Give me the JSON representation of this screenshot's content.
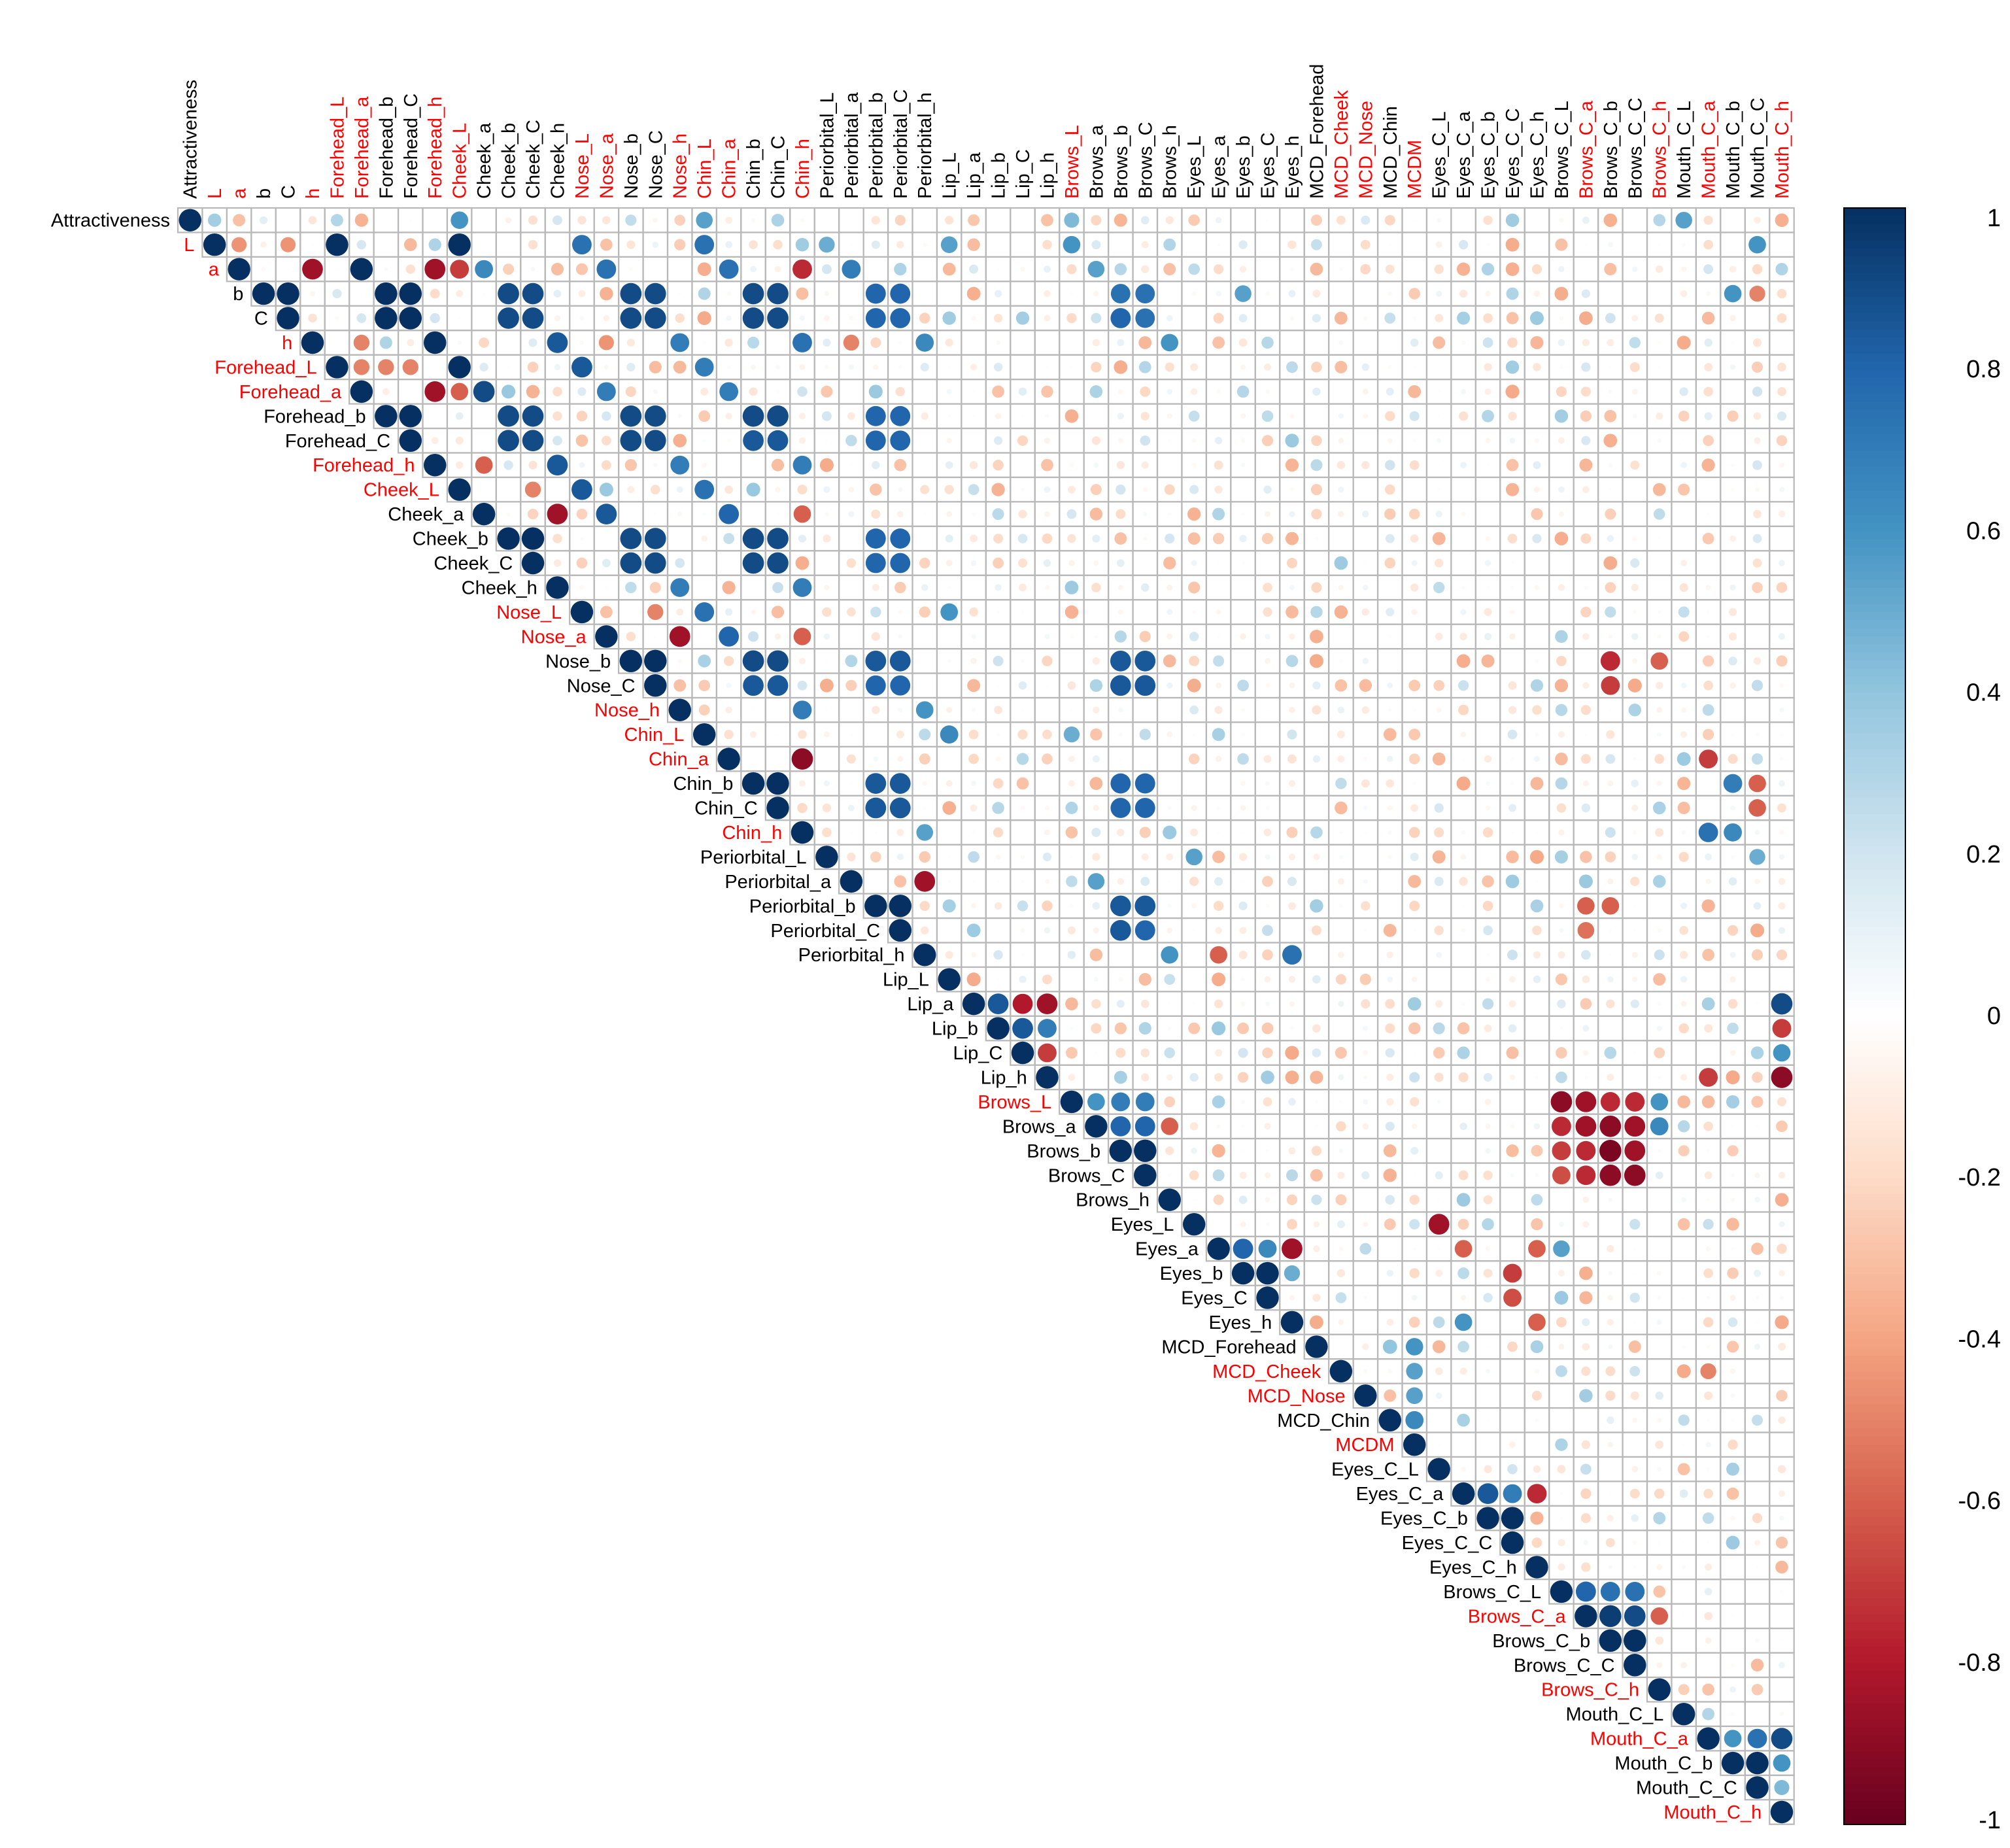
{
  "chart_data": {
    "type": "heatmap",
    "style": "upper-triangle correlation matrix, circles sized and coloured by coefficient",
    "title": "",
    "variables": [
      "Attractiveness",
      "L",
      "a",
      "b",
      "C",
      "h",
      "Forehead_L",
      "Forehead_a",
      "Forehead_b",
      "Forehead_C",
      "Forehead_h",
      "Cheek_L",
      "Cheek_a",
      "Cheek_b",
      "Cheek_C",
      "Cheek_h",
      "Nose_L",
      "Nose_a",
      "Nose_b",
      "Nose_C",
      "Nose_h",
      "Chin_L",
      "Chin_a",
      "Chin_b",
      "Chin_C",
      "Chin_h",
      "Periorbital_L",
      "Periorbital_a",
      "Periorbital_b",
      "Periorbital_C",
      "Periorbital_h",
      "Lip_L",
      "Lip_a",
      "Lip_b",
      "Lip_C",
      "Lip_h",
      "Brows_L",
      "Brows_a",
      "Brows_b",
      "Brows_C",
      "Brows_h",
      "Eyes_L",
      "Eyes_a",
      "Eyes_b",
      "Eyes_C",
      "Eyes_h",
      "MCD_Forehead",
      "MCD_Cheek",
      "MCD_Nose",
      "MCD_Chin",
      "MCDM",
      "Eyes_C_L",
      "Eyes_C_a",
      "Eyes_C_b",
      "Eyes_C_C",
      "Eyes_C_h",
      "Brows_C_L",
      "Brows_C_a",
      "Brows_C_b",
      "Brows_C_C",
      "Brows_C_h",
      "Mouth_C_L",
      "Mouth_C_a",
      "Mouth_C_b",
      "Mouth_C_C",
      "Mouth_C_h"
    ],
    "highlighted_variables": [
      "L",
      "a",
      "h",
      "Forehead_L",
      "Forehead_a",
      "Forehead_h",
      "Cheek_L",
      "Nose_L",
      "Nose_a",
      "Nose_h",
      "Chin_L",
      "Chin_a",
      "Chin_h",
      "Brows_L",
      "MCD_Cheek",
      "MCD_Nose",
      "MCDM",
      "Brows_C_a",
      "Brows_C_h",
      "Mouth_C_a",
      "Mouth_C_h"
    ],
    "colorbar": {
      "ticks": [
        "1",
        "0.8",
        "0.6",
        "0.4",
        "0.2",
        "0",
        "-0.2",
        "-0.4",
        "-0.6",
        "-0.8",
        "-1"
      ],
      "range": [
        -1,
        1
      ]
    },
    "correlations": [
      [
        0,
        1,
        0.35
      ],
      [
        0,
        2,
        -0.3
      ],
      [
        0,
        6,
        0.3
      ],
      [
        0,
        7,
        -0.35
      ],
      [
        0,
        11,
        0.6
      ],
      [
        0,
        21,
        0.55
      ],
      [
        0,
        36,
        0.45
      ],
      [
        0,
        61,
        0.55
      ],
      [
        1,
        6,
        1.0
      ],
      [
        1,
        11,
        1.0
      ],
      [
        1,
        16,
        0.75
      ],
      [
        1,
        21,
        0.75
      ],
      [
        1,
        2,
        -0.45
      ],
      [
        1,
        4,
        -0.45
      ],
      [
        1,
        36,
        0.6
      ],
      [
        1,
        26,
        0.5
      ],
      [
        1,
        31,
        0.55
      ],
      [
        1,
        64,
        0.6
      ],
      [
        2,
        7,
        1.0
      ],
      [
        2,
        5,
        -0.85
      ],
      [
        2,
        10,
        -0.85
      ],
      [
        2,
        11,
        -0.7
      ],
      [
        2,
        12,
        0.65
      ],
      [
        2,
        17,
        0.75
      ],
      [
        2,
        22,
        0.75
      ],
      [
        2,
        25,
        -0.75
      ],
      [
        2,
        27,
        0.7
      ],
      [
        2,
        37,
        0.55
      ],
      [
        3,
        4,
        1.0
      ],
      [
        3,
        8,
        1.0
      ],
      [
        3,
        9,
        1.0
      ],
      [
        3,
        13,
        0.9
      ],
      [
        3,
        14,
        0.9
      ],
      [
        3,
        18,
        0.9
      ],
      [
        3,
        19,
        0.9
      ],
      [
        3,
        23,
        0.9
      ],
      [
        3,
        24,
        0.9
      ],
      [
        3,
        28,
        0.8
      ],
      [
        3,
        29,
        0.8
      ],
      [
        3,
        38,
        0.75
      ],
      [
        3,
        39,
        0.75
      ],
      [
        3,
        43,
        0.55
      ],
      [
        3,
        63,
        0.6
      ],
      [
        3,
        64,
        -0.5
      ],
      [
        4,
        8,
        1.0
      ],
      [
        4,
        9,
        1.0
      ],
      [
        4,
        13,
        0.9
      ],
      [
        4,
        14,
        0.9
      ],
      [
        4,
        18,
        0.9
      ],
      [
        4,
        19,
        0.9
      ],
      [
        4,
        23,
        0.9
      ],
      [
        4,
        24,
        0.9
      ],
      [
        4,
        28,
        0.8
      ],
      [
        4,
        29,
        0.8
      ],
      [
        4,
        38,
        0.8
      ],
      [
        4,
        39,
        0.75
      ],
      [
        5,
        10,
        1.0
      ],
      [
        5,
        15,
        0.85
      ],
      [
        5,
        20,
        0.7
      ],
      [
        5,
        25,
        0.75
      ],
      [
        5,
        30,
        0.65
      ],
      [
        5,
        40,
        0.6
      ],
      [
        5,
        7,
        -0.5
      ],
      [
        5,
        17,
        -0.45
      ],
      [
        5,
        27,
        -0.5
      ],
      [
        6,
        11,
        1.0
      ],
      [
        6,
        16,
        0.85
      ],
      [
        6,
        21,
        0.7
      ],
      [
        6,
        7,
        -0.5
      ],
      [
        6,
        8,
        -0.5
      ],
      [
        6,
        9,
        -0.5
      ],
      [
        7,
        12,
        0.9
      ],
      [
        7,
        10,
        -0.85
      ],
      [
        7,
        11,
        -0.6
      ],
      [
        7,
        17,
        0.7
      ],
      [
        7,
        22,
        0.7
      ],
      [
        8,
        9,
        1.0
      ],
      [
        8,
        13,
        0.9
      ],
      [
        8,
        14,
        0.9
      ],
      [
        8,
        18,
        0.9
      ],
      [
        8,
        19,
        0.9
      ],
      [
        8,
        23,
        0.9
      ],
      [
        8,
        24,
        0.9
      ],
      [
        8,
        28,
        0.8
      ],
      [
        8,
        29,
        0.8
      ],
      [
        9,
        13,
        0.9
      ],
      [
        9,
        14,
        0.9
      ],
      [
        9,
        18,
        0.9
      ],
      [
        9,
        19,
        0.9
      ],
      [
        9,
        23,
        0.85
      ],
      [
        9,
        24,
        0.85
      ],
      [
        9,
        28,
        0.8
      ],
      [
        9,
        29,
        0.8
      ],
      [
        10,
        15,
        0.85
      ],
      [
        10,
        20,
        0.7
      ],
      [
        10,
        25,
        0.7
      ],
      [
        10,
        12,
        -0.6
      ],
      [
        11,
        16,
        0.85
      ],
      [
        11,
        21,
        0.75
      ],
      [
        11,
        14,
        -0.5
      ],
      [
        12,
        17,
        0.85
      ],
      [
        12,
        22,
        0.8
      ],
      [
        12,
        15,
        -0.85
      ],
      [
        12,
        25,
        -0.6
      ],
      [
        13,
        14,
        1.0
      ],
      [
        13,
        18,
        0.9
      ],
      [
        13,
        19,
        0.9
      ],
      [
        13,
        23,
        0.9
      ],
      [
        13,
        24,
        0.9
      ],
      [
        13,
        28,
        0.8
      ],
      [
        13,
        29,
        0.8
      ],
      [
        14,
        18,
        0.9
      ],
      [
        14,
        19,
        0.9
      ],
      [
        14,
        23,
        0.9
      ],
      [
        14,
        24,
        0.9
      ],
      [
        14,
        28,
        0.8
      ],
      [
        14,
        29,
        0.8
      ],
      [
        15,
        20,
        0.7
      ],
      [
        15,
        25,
        0.7
      ],
      [
        16,
        21,
        0.75
      ],
      [
        16,
        31,
        0.6
      ],
      [
        16,
        19,
        -0.5
      ],
      [
        17,
        22,
        0.8
      ],
      [
        17,
        20,
        -0.85
      ],
      [
        17,
        25,
        -0.6
      ],
      [
        18,
        19,
        1.0
      ],
      [
        18,
        23,
        0.9
      ],
      [
        18,
        24,
        0.9
      ],
      [
        18,
        28,
        0.85
      ],
      [
        18,
        29,
        0.85
      ],
      [
        18,
        38,
        0.85
      ],
      [
        18,
        39,
        0.85
      ],
      [
        18,
        58,
        -0.75
      ],
      [
        18,
        60,
        -0.6
      ],
      [
        19,
        23,
        0.85
      ],
      [
        19,
        24,
        0.85
      ],
      [
        19,
        28,
        0.8
      ],
      [
        19,
        29,
        0.8
      ],
      [
        19,
        38,
        0.85
      ],
      [
        19,
        39,
        0.85
      ],
      [
        19,
        58,
        -0.7
      ],
      [
        20,
        25,
        0.7
      ],
      [
        20,
        30,
        0.6
      ],
      [
        21,
        31,
        0.65
      ],
      [
        21,
        36,
        0.5
      ],
      [
        22,
        25,
        -0.9
      ],
      [
        22,
        62,
        -0.7
      ],
      [
        23,
        24,
        1.0
      ],
      [
        23,
        28,
        0.85
      ],
      [
        23,
        29,
        0.85
      ],
      [
        23,
        38,
        0.8
      ],
      [
        23,
        39,
        0.8
      ],
      [
        23,
        63,
        0.7
      ],
      [
        23,
        64,
        -0.6
      ],
      [
        24,
        28,
        0.85
      ],
      [
        24,
        29,
        0.85
      ],
      [
        24,
        38,
        0.8
      ],
      [
        24,
        39,
        0.8
      ],
      [
        24,
        64,
        -0.6
      ],
      [
        25,
        30,
        0.55
      ],
      [
        25,
        62,
        0.75
      ],
      [
        25,
        63,
        0.65
      ],
      [
        26,
        64,
        0.5
      ],
      [
        26,
        41,
        0.55
      ],
      [
        27,
        30,
        -0.85
      ],
      [
        27,
        37,
        0.55
      ],
      [
        28,
        29,
        1.0
      ],
      [
        28,
        38,
        0.85
      ],
      [
        28,
        39,
        0.85
      ],
      [
        28,
        57,
        -0.6
      ],
      [
        28,
        58,
        -0.6
      ],
      [
        29,
        38,
        0.85
      ],
      [
        29,
        39,
        0.8
      ],
      [
        29,
        57,
        -0.55
      ],
      [
        30,
        40,
        0.6
      ],
      [
        30,
        42,
        -0.6
      ],
      [
        30,
        45,
        0.75
      ],
      [
        32,
        33,
        0.85
      ],
      [
        32,
        34,
        -0.8
      ],
      [
        32,
        35,
        -0.85
      ],
      [
        32,
        65,
        0.9
      ],
      [
        33,
        34,
        0.85
      ],
      [
        33,
        35,
        0.7
      ],
      [
        33,
        65,
        -0.7
      ],
      [
        34,
        35,
        -0.7
      ],
      [
        34,
        65,
        0.6
      ],
      [
        35,
        65,
        -0.9
      ],
      [
        35,
        62,
        -0.7
      ],
      [
        36,
        37,
        0.6
      ],
      [
        36,
        38,
        0.7
      ],
      [
        36,
        39,
        0.7
      ],
      [
        36,
        56,
        -0.9
      ],
      [
        36,
        57,
        -0.85
      ],
      [
        36,
        58,
        -0.75
      ],
      [
        36,
        59,
        -0.75
      ],
      [
        36,
        60,
        0.6
      ],
      [
        37,
        38,
        0.8
      ],
      [
        37,
        39,
        0.8
      ],
      [
        37,
        40,
        -0.6
      ],
      [
        37,
        56,
        -0.75
      ],
      [
        37,
        57,
        -0.85
      ],
      [
        37,
        58,
        -0.9
      ],
      [
        37,
        59,
        -0.85
      ],
      [
        37,
        60,
        0.65
      ],
      [
        38,
        39,
        1.0
      ],
      [
        38,
        56,
        -0.7
      ],
      [
        38,
        57,
        -0.75
      ],
      [
        38,
        58,
        -0.95
      ],
      [
        38,
        59,
        -0.85
      ],
      [
        39,
        56,
        -0.65
      ],
      [
        39,
        57,
        -0.75
      ],
      [
        39,
        58,
        -0.9
      ],
      [
        39,
        59,
        -0.9
      ],
      [
        41,
        51,
        -0.85
      ],
      [
        42,
        43,
        0.8
      ],
      [
        42,
        44,
        0.65
      ],
      [
        42,
        45,
        -0.85
      ],
      [
        42,
        52,
        -0.6
      ],
      [
        42,
        55,
        -0.6
      ],
      [
        42,
        56,
        0.55
      ],
      [
        43,
        44,
        1.0
      ],
      [
        43,
        45,
        0.5
      ],
      [
        43,
        54,
        -0.7
      ],
      [
        44,
        54,
        -0.65
      ],
      [
        45,
        52,
        0.6
      ],
      [
        45,
        55,
        -0.6
      ],
      [
        46,
        49,
        0.4
      ],
      [
        46,
        50,
        0.6
      ],
      [
        47,
        50,
        0.55
      ],
      [
        47,
        62,
        -0.5
      ],
      [
        48,
        50,
        0.55
      ],
      [
        49,
        50,
        0.65
      ],
      [
        52,
        53,
        0.85
      ],
      [
        52,
        54,
        0.7
      ],
      [
        52,
        55,
        -0.75
      ],
      [
        53,
        54,
        1.0
      ],
      [
        53,
        60,
        0.3
      ],
      [
        56,
        57,
        0.8
      ],
      [
        56,
        58,
        0.75
      ],
      [
        56,
        59,
        0.75
      ],
      [
        57,
        58,
        0.95
      ],
      [
        57,
        59,
        0.9
      ],
      [
        57,
        60,
        -0.6
      ],
      [
        58,
        59,
        1.0
      ],
      [
        61,
        62,
        0.3
      ],
      [
        62,
        63,
        0.6
      ],
      [
        62,
        64,
        0.75
      ],
      [
        62,
        65,
        0.9
      ],
      [
        63,
        64,
        1.0
      ],
      [
        63,
        65,
        0.6
      ],
      [
        64,
        65,
        0.45
      ]
    ]
  }
}
